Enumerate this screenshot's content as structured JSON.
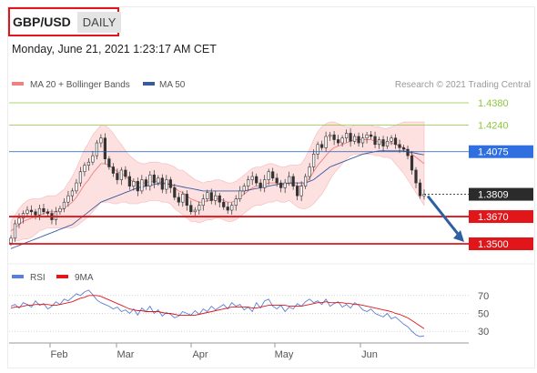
{
  "header": {
    "pair": "GBP/USD",
    "timeframe": "DAILY",
    "datetime": "Monday, June 21, 2021 1:23:17 AM CET"
  },
  "colors": {
    "up_candle": "#ffffff",
    "down_candle": "#333333",
    "band_fill": "#fde0e0",
    "ma20": "#f08080",
    "ma50": "#3a5aa0",
    "resistance_green": "#8dc63f",
    "pivot_blue": "#1e5aa8",
    "support_red": "#e0161b",
    "arrow": "#2e5fa1",
    "rsi": "#5b7fd6",
    "rsi_ma": "#e0161b"
  },
  "chart_data": [
    {
      "type": "candlestick",
      "legend": [
        {
          "label": "MA 20 + Bollinger Bands",
          "color": "#f08080"
        },
        {
          "label": "MA 50",
          "color": "#3a5aa0"
        }
      ],
      "credit": "Research © 2021 Trading Central",
      "x_labels": [
        "Feb",
        "Mar",
        "Apr",
        "May",
        "Jun"
      ],
      "ylim": [
        1.346,
        1.441
      ],
      "levels": [
        {
          "value": 1.438,
          "label": "1.4380",
          "kind": "resistance"
        },
        {
          "value": 1.424,
          "label": "1.4240",
          "kind": "resistance"
        },
        {
          "value": 1.4075,
          "label": "1.4075",
          "kind": "pivot"
        },
        {
          "value": 1.3809,
          "label": "1.3809",
          "kind": "last"
        },
        {
          "value": 1.367,
          "label": "1.3670",
          "kind": "support"
        },
        {
          "value": 1.35,
          "label": "1.3500",
          "kind": "support"
        }
      ],
      "close_series": [
        1.3535,
        1.3625,
        1.366,
        1.369,
        1.371,
        1.37,
        1.368,
        1.372,
        1.37,
        1.369,
        1.365,
        1.37,
        1.372,
        1.376,
        1.38,
        1.383,
        1.388,
        1.395,
        1.399,
        1.401,
        1.405,
        1.413,
        1.416,
        1.403,
        1.398,
        1.394,
        1.39,
        1.396,
        1.392,
        1.386,
        1.389,
        1.383,
        1.39,
        1.386,
        1.393,
        1.388,
        1.391,
        1.384,
        1.39,
        1.385,
        1.379,
        1.376,
        1.381,
        1.374,
        1.37,
        1.371,
        1.374,
        1.378,
        1.382,
        1.377,
        1.38,
        1.376,
        1.373,
        1.371,
        1.374,
        1.378,
        1.383,
        1.386,
        1.39,
        1.392,
        1.388,
        1.385,
        1.39,
        1.395,
        1.391,
        1.388,
        1.385,
        1.388,
        1.392,
        1.386,
        1.38,
        1.386,
        1.392,
        1.398,
        1.406,
        1.412,
        1.41,
        1.417,
        1.418,
        1.415,
        1.413,
        1.416,
        1.419,
        1.414,
        1.417,
        1.413,
        1.416,
        1.418,
        1.417,
        1.412,
        1.415,
        1.411,
        1.414,
        1.416,
        1.412,
        1.41,
        1.409,
        1.405,
        1.396,
        1.388,
        1.38,
        1.3809
      ],
      "ma20_series": [
        1.358,
        1.36,
        1.362,
        1.364,
        1.365,
        1.366,
        1.367,
        1.368,
        1.369,
        1.37,
        1.37,
        1.37,
        1.371,
        1.372,
        1.374,
        1.376,
        1.379,
        1.383,
        1.387,
        1.39,
        1.394,
        1.397,
        1.4,
        1.4,
        1.399,
        1.397,
        1.395,
        1.394,
        1.392,
        1.39,
        1.389,
        1.388,
        1.388,
        1.388,
        1.389,
        1.389,
        1.389,
        1.388,
        1.388,
        1.387,
        1.385,
        1.383,
        1.382,
        1.38,
        1.378,
        1.377,
        1.376,
        1.376,
        1.377,
        1.377,
        1.378,
        1.378,
        1.377,
        1.376,
        1.376,
        1.377,
        1.379,
        1.381,
        1.383,
        1.385,
        1.386,
        1.386,
        1.387,
        1.388,
        1.388,
        1.388,
        1.387,
        1.387,
        1.388,
        1.387,
        1.386,
        1.386,
        1.388,
        1.391,
        1.395,
        1.399,
        1.402,
        1.405,
        1.408,
        1.41,
        1.411,
        1.412,
        1.413,
        1.414,
        1.415,
        1.415,
        1.415,
        1.415,
        1.415,
        1.414,
        1.414,
        1.413,
        1.413,
        1.413,
        1.412,
        1.411,
        1.41,
        1.408,
        1.406,
        1.404,
        1.402,
        1.4
      ],
      "band_width_series": [
        0.006,
        0.008,
        0.01,
        0.011,
        0.012,
        0.012,
        0.011,
        0.01,
        0.01,
        0.01,
        0.01,
        0.01,
        0.011,
        0.012,
        0.014,
        0.016,
        0.018,
        0.02,
        0.022,
        0.023,
        0.024,
        0.024,
        0.024,
        0.024,
        0.023,
        0.022,
        0.02,
        0.018,
        0.016,
        0.015,
        0.014,
        0.013,
        0.012,
        0.012,
        0.012,
        0.012,
        0.012,
        0.012,
        0.012,
        0.012,
        0.013,
        0.013,
        0.014,
        0.014,
        0.014,
        0.013,
        0.013,
        0.012,
        0.012,
        0.012,
        0.012,
        0.012,
        0.012,
        0.012,
        0.012,
        0.012,
        0.012,
        0.012,
        0.012,
        0.012,
        0.012,
        0.012,
        0.012,
        0.012,
        0.012,
        0.011,
        0.011,
        0.011,
        0.011,
        0.012,
        0.013,
        0.014,
        0.016,
        0.018,
        0.02,
        0.021,
        0.021,
        0.02,
        0.018,
        0.016,
        0.014,
        0.012,
        0.01,
        0.009,
        0.009,
        0.009,
        0.009,
        0.009,
        0.009,
        0.009,
        0.009,
        0.009,
        0.009,
        0.01,
        0.012,
        0.014,
        0.016,
        0.018,
        0.02,
        0.022,
        0.024,
        0.026
      ],
      "ma50_series": [
        1.347,
        1.348,
        1.349,
        1.35,
        1.351,
        1.352,
        1.353,
        1.354,
        1.355,
        1.356,
        1.357,
        1.358,
        1.359,
        1.36,
        1.361,
        1.362,
        1.364,
        1.366,
        1.368,
        1.37,
        1.372,
        1.374,
        1.376,
        1.377,
        1.378,
        1.379,
        1.38,
        1.381,
        1.382,
        1.383,
        1.384,
        1.385,
        1.3855,
        1.386,
        1.3865,
        1.387,
        1.3875,
        1.3875,
        1.3875,
        1.387,
        1.3865,
        1.386,
        1.3855,
        1.385,
        1.3845,
        1.384,
        1.3835,
        1.383,
        1.383,
        1.383,
        1.383,
        1.383,
        1.383,
        1.383,
        1.383,
        1.383,
        1.383,
        1.383,
        1.3835,
        1.384,
        1.3845,
        1.385,
        1.3855,
        1.386,
        1.3865,
        1.387,
        1.3875,
        1.3875,
        1.388,
        1.388,
        1.388,
        1.388,
        1.388,
        1.389,
        1.39,
        1.392,
        1.394,
        1.396,
        1.398,
        1.399,
        1.4,
        1.401,
        1.402,
        1.403,
        1.404,
        1.405,
        1.406,
        1.4065,
        1.407,
        1.4075,
        1.408,
        1.408,
        1.408,
        1.408,
        1.408,
        1.408,
        1.408,
        1.4075,
        1.407,
        1.4065,
        1.406,
        1.4055
      ],
      "forecast_arrow": {
        "from": 1.3809,
        "to": 1.35
      }
    },
    {
      "type": "line",
      "legend": [
        {
          "label": "RSI",
          "color": "#5b7fd6"
        },
        {
          "label": "9MA",
          "color": "#e0161b"
        }
      ],
      "y_ticks": [
        70,
        50,
        30
      ],
      "ylim": [
        22,
        80
      ],
      "rsi_series": [
        58,
        60,
        56,
        62,
        60,
        57,
        64,
        59,
        61,
        55,
        58,
        63,
        60,
        66,
        64,
        68,
        72,
        70,
        74,
        76,
        71,
        65,
        62,
        60,
        58,
        55,
        57,
        52,
        54,
        50,
        55,
        48,
        56,
        52,
        58,
        50,
        54,
        47,
        51,
        49,
        45,
        47,
        52,
        50,
        48,
        53,
        49,
        55,
        52,
        58,
        54,
        57,
        60,
        55,
        62,
        58,
        60,
        54,
        57,
        52,
        62,
        56,
        64,
        66,
        58,
        55,
        59,
        52,
        57,
        55,
        61,
        58,
        63,
        66,
        62,
        64,
        60,
        66,
        58,
        61,
        63,
        57,
        60,
        56,
        62,
        59,
        54,
        52,
        55,
        50,
        48,
        46,
        50,
        44,
        46,
        42,
        38,
        35,
        30,
        26,
        24,
        25
      ],
      "rsi_ma_series": [
        56,
        57,
        57,
        58,
        59,
        59,
        60,
        60,
        60,
        60,
        59,
        59,
        60,
        61,
        62,
        63,
        65,
        67,
        68,
        70,
        70,
        70,
        69,
        67,
        65,
        63,
        61,
        59,
        57,
        55,
        54,
        53,
        53,
        52,
        52,
        52,
        52,
        51,
        50,
        50,
        49,
        48,
        48,
        48,
        48,
        48,
        49,
        50,
        51,
        52,
        53,
        54,
        55,
        56,
        57,
        57,
        57,
        57,
        57,
        56,
        56,
        57,
        58,
        59,
        59,
        59,
        59,
        59,
        58,
        58,
        58,
        58,
        59,
        60,
        61,
        62,
        62,
        63,
        62,
        62,
        62,
        62,
        61,
        61,
        60,
        60,
        59,
        58,
        57,
        56,
        55,
        54,
        53,
        52,
        50,
        49,
        47,
        45,
        42,
        39,
        36,
        33
      ]
    }
  ]
}
